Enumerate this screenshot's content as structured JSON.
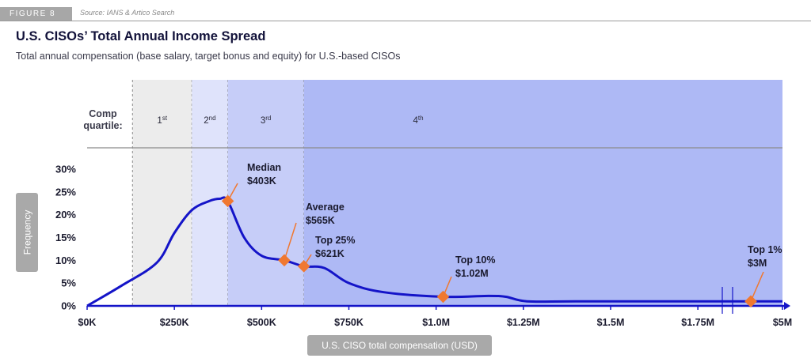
{
  "header": {
    "figure_tag": "FIGURE 8",
    "source": "Source: IANS & Artico Search",
    "title": "U.S. CISOs’ Total Annual Income Spread",
    "subtitle": "Total annual compensation (base salary, target bonus and equity) for U.S.-based CISOs"
  },
  "chart_data": {
    "type": "area",
    "title": "U.S. CISOs’ Total Annual Income Spread",
    "xlabel": "U.S. CISO total compensation (USD)",
    "ylabel": "Frequency",
    "x_unit": "USD thousands",
    "y_unit": "percent",
    "ylim": [
      0,
      30
    ],
    "xlim": [
      0,
      5000
    ],
    "x_axis_break": [
      1820,
      1850
    ],
    "x_ticks": [
      {
        "value": 0,
        "label": "$0K"
      },
      {
        "value": 250,
        "label": "$250K"
      },
      {
        "value": 500,
        "label": "$500K"
      },
      {
        "value": 750,
        "label": "$750K"
      },
      {
        "value": 1000,
        "label": "$1.0M"
      },
      {
        "value": 1250,
        "label": "$1.25M"
      },
      {
        "value": 1500,
        "label": "$1.5M"
      },
      {
        "value": 1750,
        "label": "$1.75M"
      },
      {
        "value": 5000,
        "label": "$5M"
      }
    ],
    "y_ticks": [
      {
        "value": 0,
        "label": "0%"
      },
      {
        "value": 5,
        "label": "5%"
      },
      {
        "value": 10,
        "label": "10%"
      },
      {
        "value": 15,
        "label": "15%"
      },
      {
        "value": 20,
        "label": "20%"
      },
      {
        "value": 25,
        "label": "25%"
      },
      {
        "value": 30,
        "label": "30%"
      }
    ],
    "quartile_header_label": "Comp\nquartile:",
    "quartiles": [
      {
        "name": "1",
        "suffix": "st",
        "from": 130,
        "to": 300,
        "color": "#ececec"
      },
      {
        "name": "2",
        "suffix": "nd",
        "from": 300,
        "to": 403,
        "color": "#dfe3fb"
      },
      {
        "name": "3",
        "suffix": "rd",
        "from": 403,
        "to": 621,
        "color": "#c6cdf8"
      },
      {
        "name": "4",
        "suffix": "th",
        "from": 621,
        "to": 5000,
        "color": "#aeb9f5"
      }
    ],
    "series": [
      {
        "name": "Frequency",
        "color": "#1414c8",
        "x": [
          0,
          100,
          200,
          250,
          300,
          350,
          380,
          403,
          450,
          500,
          565,
          621,
          680,
          750,
          850,
          1020,
          1150,
          1200,
          1260,
          1400,
          1700,
          1830,
          5000
        ],
        "y": [
          0,
          4.5,
          9.5,
          16,
          21,
          23,
          23.5,
          23,
          15,
          11,
          10,
          8.7,
          8.3,
          5,
          3,
          2,
          2.2,
          2,
          1,
          1,
          1,
          1,
          1
        ]
      }
    ],
    "markers": [
      {
        "name": "Median",
        "label": "Median",
        "value_label": "$403K",
        "x": 403,
        "y": 23
      },
      {
        "name": "Average",
        "label": "Average",
        "value_label": "$565K",
        "x": 565,
        "y": 10
      },
      {
        "name": "Top 25%",
        "label": "Top 25%",
        "value_label": "$621K",
        "x": 621,
        "y": 8.7
      },
      {
        "name": "Top 10%",
        "label": "Top 10%",
        "value_label": "$1.02M",
        "x": 1020,
        "y": 2
      },
      {
        "name": "Top 1%",
        "label": "Top 1%",
        "value_label": "$3M",
        "x": 3000,
        "y": 1
      }
    ],
    "marker_color": "#f07830"
  }
}
